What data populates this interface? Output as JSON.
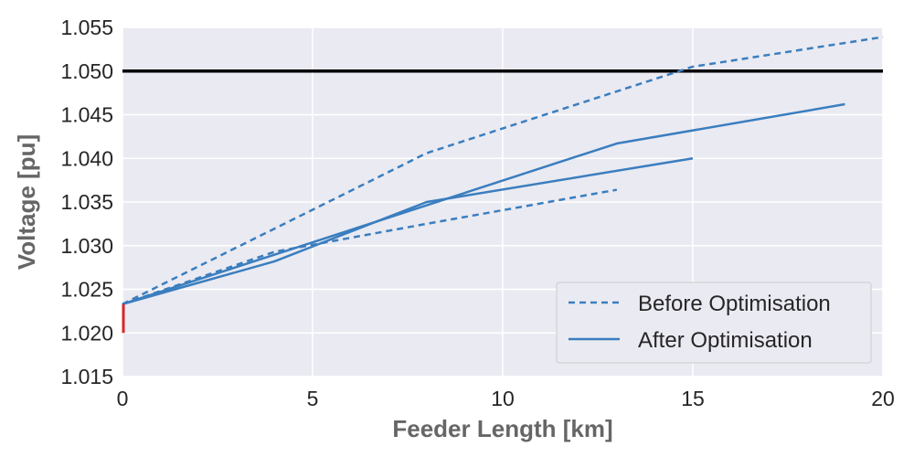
{
  "chart_data": {
    "type": "line",
    "title": "",
    "xlabel": "Feeder Length [km]",
    "ylabel": "Voltage [pu]",
    "xlim": [
      0,
      20
    ],
    "ylim": [
      1.015,
      1.055
    ],
    "xticks": [
      0,
      5,
      10,
      15,
      20
    ],
    "xtick_labels": [
      "0",
      "5",
      "10",
      "15",
      "20"
    ],
    "yticks": [
      1.015,
      1.02,
      1.025,
      1.03,
      1.035,
      1.04,
      1.045,
      1.05,
      1.055
    ],
    "ytick_labels": [
      "1.015",
      "1.020",
      "1.025",
      "1.030",
      "1.035",
      "1.040",
      "1.045",
      "1.050",
      "1.055"
    ],
    "grid": true,
    "legend_position": "bottom-right",
    "limit_line": {
      "y": 1.05,
      "color": "#000000"
    },
    "substation_marker": {
      "x": 0,
      "y_from": 1.02,
      "y_to": 1.0233,
      "color": "#d62728"
    },
    "legend": [
      {
        "label": "Before Optimisation",
        "style": "dashed"
      },
      {
        "label": "After Optimisation",
        "style": "solid"
      }
    ],
    "series": [
      {
        "style": "dashed",
        "color": "#3a7ebf",
        "x": [
          0,
          8,
          15,
          20
        ],
        "y": [
          1.0233,
          1.0406,
          1.0505,
          1.0539
        ]
      },
      {
        "style": "dashed",
        "color": "#3a7ebf",
        "x": [
          0,
          4,
          8,
          13
        ],
        "y": [
          1.0233,
          1.0293,
          1.0325,
          1.0364
        ]
      },
      {
        "style": "solid",
        "color": "#3a7ebf",
        "x": [
          0,
          4,
          8,
          15
        ],
        "y": [
          1.0233,
          1.0282,
          1.035,
          1.04
        ]
      },
      {
        "style": "solid",
        "color": "#3a7ebf",
        "x": [
          0,
          13,
          19
        ],
        "y": [
          1.0233,
          1.0417,
          1.0462
        ]
      }
    ]
  }
}
